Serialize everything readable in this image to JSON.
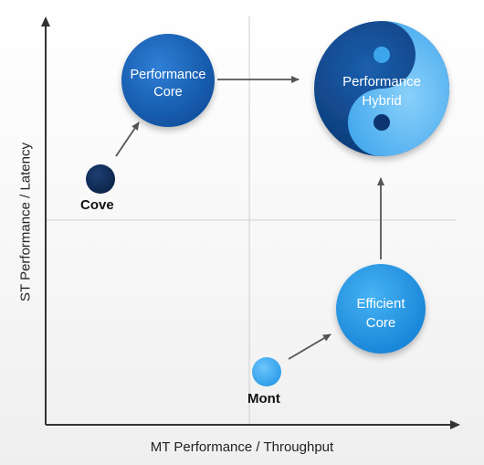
{
  "axes": {
    "x_label": "MT Performance / Throughput",
    "y_label": "ST Performance / Latency"
  },
  "nodes": {
    "performance_core": {
      "line1": "Performance",
      "line2": "Core"
    },
    "performance_hybrid": {
      "line1": "Performance",
      "line2": "Hybrid"
    },
    "efficient_core": {
      "line1": "Efficient",
      "line2": "Core"
    },
    "cove": {
      "label": "Cove"
    },
    "mont": {
      "label": "Mont"
    }
  },
  "colors": {
    "background": "#f4f4f4",
    "axis": "#333333",
    "arrow": "#555555",
    "grid": "#d0d0d0",
    "performance_blue": "#1560b8",
    "dark_navy": "#0b2a55",
    "light_blue": "#2a9be8",
    "pale_blue": "#5ab8f4"
  }
}
